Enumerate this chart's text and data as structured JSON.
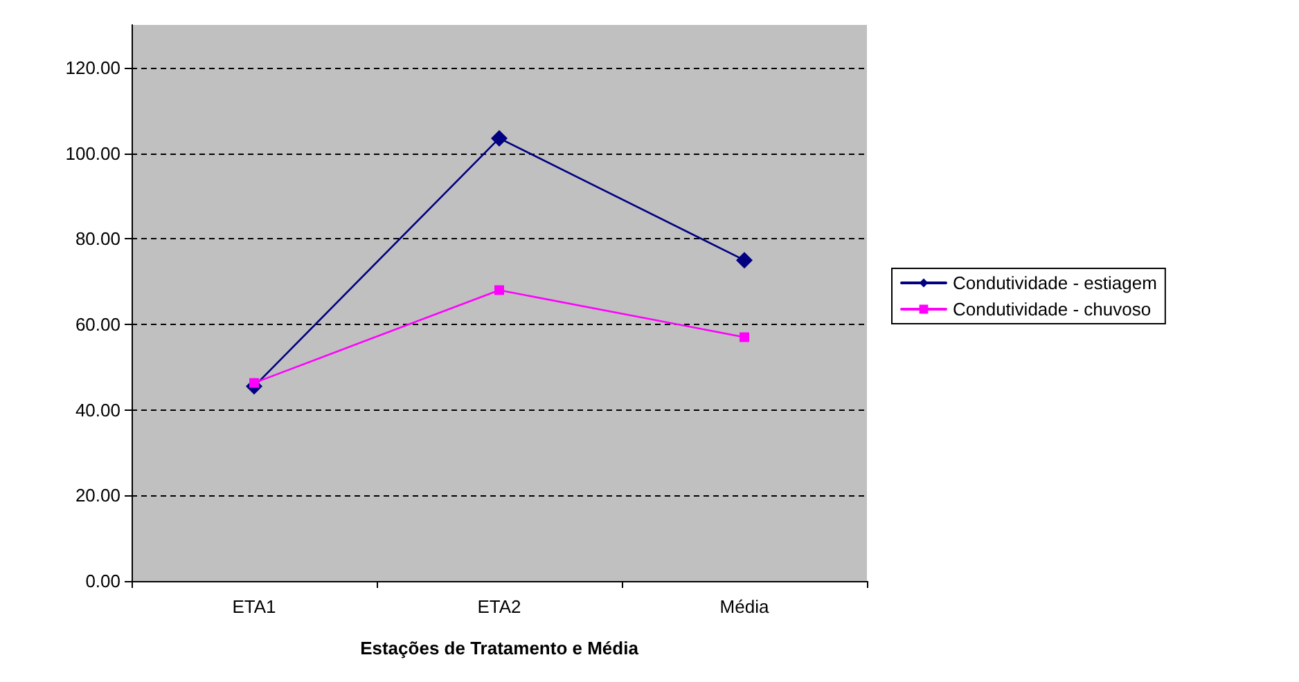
{
  "chart_data": {
    "type": "line",
    "xlabel": "Estações de Tratamento e Média",
    "categories": [
      "ETA1",
      "ETA2",
      "Média"
    ],
    "series": [
      {
        "name": "Condutividade - estiagem",
        "color": "#000080",
        "marker": "diamond",
        "values": [
          45.5,
          103.5,
          75
        ]
      },
      {
        "name": "Condutividade - chuvoso",
        "color": "#ff00ff",
        "marker": "square",
        "values": [
          46.3,
          68,
          57
        ]
      }
    ],
    "ylim": [
      0,
      130
    ],
    "yticks": [
      {
        "value": 0,
        "label": "0.00"
      },
      {
        "value": 20,
        "label": "20.00"
      },
      {
        "value": 40,
        "label": "40.00"
      },
      {
        "value": 60,
        "label": "60.00"
      },
      {
        "value": 80,
        "label": "80.00"
      },
      {
        "value": 100,
        "label": "100.00"
      },
      {
        "value": 120,
        "label": "120.00"
      }
    ],
    "grid": "y",
    "legend": "right",
    "line_style": "solid"
  }
}
